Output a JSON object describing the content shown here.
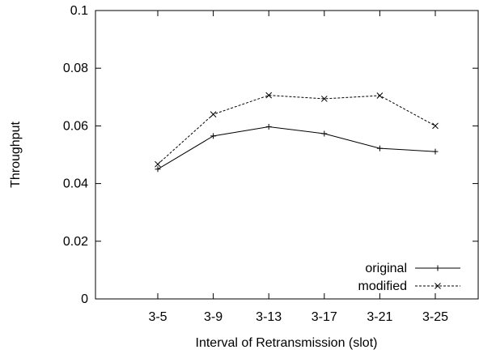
{
  "chart_data": {
    "type": "line",
    "categories": [
      "3-5",
      "3-9",
      "3-13",
      "3-17",
      "3-21",
      "3-25"
    ],
    "series": [
      {
        "name": "original",
        "values": [
          0.045,
          0.0565,
          0.0597,
          0.0573,
          0.0522,
          0.0511
        ],
        "line_style": "solid",
        "marker": "plus"
      },
      {
        "name": "modified",
        "values": [
          0.0467,
          0.064,
          0.0706,
          0.0694,
          0.0705,
          0.06
        ],
        "line_style": "dashed",
        "marker": "cross"
      }
    ],
    "title": "",
    "xlabel": "Interval of Retransmission (slot)",
    "ylabel": "Throughput",
    "ylim": [
      0,
      0.1
    ],
    "yticks": [
      "0",
      "0.02",
      "0.04",
      "0.06",
      "0.08",
      "0.1"
    ],
    "grid": false,
    "legend_position": "bottom-right"
  }
}
